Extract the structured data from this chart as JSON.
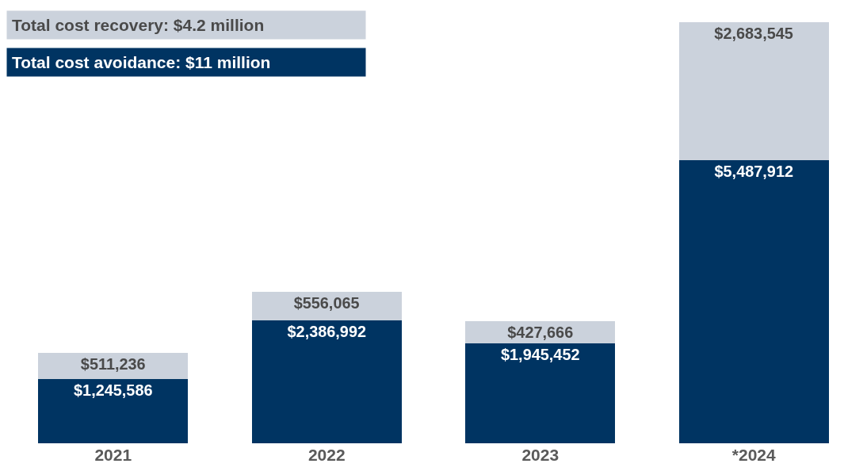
{
  "chart_data": {
    "type": "bar",
    "stacked": true,
    "categories": [
      "2021",
      "2022",
      "2023",
      "*2024"
    ],
    "series": [
      {
        "name": "Total cost avoidance: $11 million",
        "color": "#003462",
        "values": [
          1245586,
          2386992,
          1945452,
          5487912
        ],
        "value_labels": [
          "$1,245,586",
          "$2,386,992",
          "$1,945,452",
          "$5,487,912"
        ]
      },
      {
        "name": "Total cost recovery: $4.2 million",
        "color": "#cbd2dc",
        "values": [
          511236,
          556065,
          427666,
          2683545
        ],
        "value_labels": [
          "$511,236",
          "$556,065",
          "$427,666",
          "$2,683,545"
        ]
      }
    ],
    "legend": "top left"
  }
}
